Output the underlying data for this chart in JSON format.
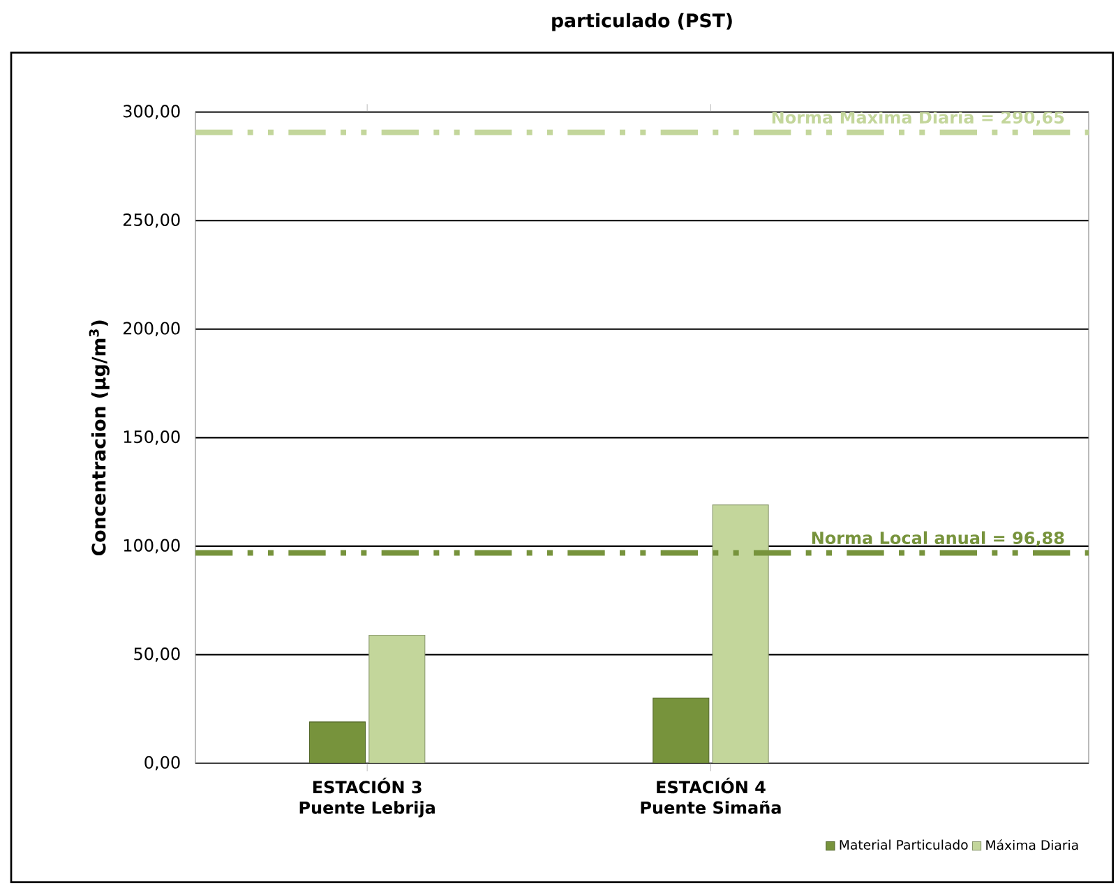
{
  "chart_data": {
    "type": "bar",
    "title": "particulado (PST)",
    "ylabel": "Concentracion (µg/m$^{3}$)",
    "categories": [
      "ESTACIÓN 3\nPuente Lebrija",
      "ESTACIÓN 4\nPuente Simaña"
    ],
    "series": [
      {
        "name": "Material Particulado",
        "color": "#77933c",
        "values": [
          19,
          30
        ]
      },
      {
        "name": "Máxima Diaria",
        "color": "#c3d69b",
        "values": [
          59,
          119
        ]
      }
    ],
    "ylim": [
      0,
      300
    ],
    "yticks": [
      {
        "value": 0,
        "label": "0,00"
      },
      {
        "value": 50,
        "label": "50,00"
      },
      {
        "value": 100,
        "label": "100,00"
      },
      {
        "value": 150,
        "label": "150,00"
      },
      {
        "value": 200,
        "label": "200,00"
      },
      {
        "value": 250,
        "label": "250,00"
      },
      {
        "value": 300,
        "label": "300,00"
      }
    ],
    "ref_lines": [
      {
        "axis": "y",
        "value": 290.65,
        "label": "Norma Máxima Diaria = 290,65",
        "color": "#c3d69b",
        "line_style": "dashed"
      },
      {
        "axis": "y",
        "value": 96.88,
        "label": "Norma Local anual = 96,88",
        "color": "#77933c",
        "line_style": "dashed"
      }
    ],
    "grid": "y",
    "legend": "bottom right"
  }
}
